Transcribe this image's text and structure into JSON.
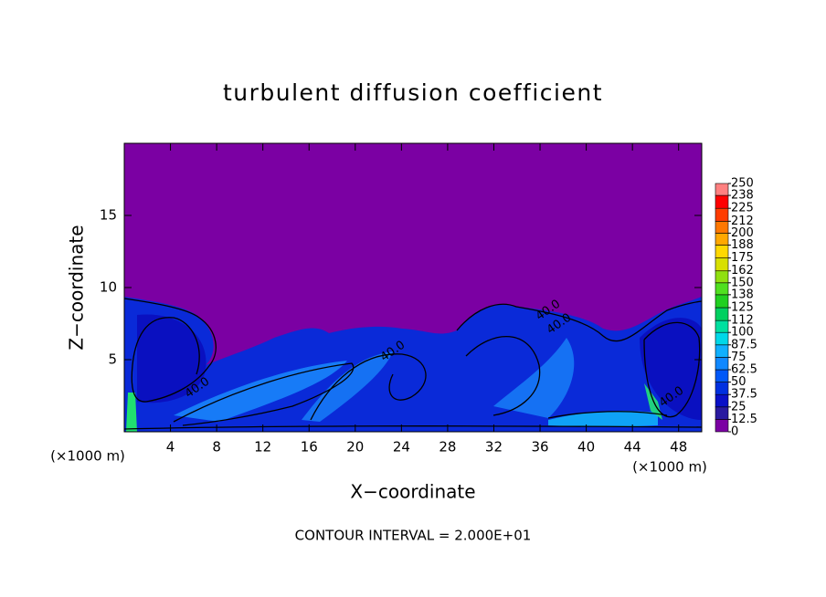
{
  "chart_data": {
    "type": "contour",
    "title": "turbulent diffusion coefficient",
    "x_label": "X−coordinate",
    "y_label": "Z−coordinate",
    "x_unit": "(×1000 m)",
    "footer": "CONTOUR INTERVAL = 2.000E+01",
    "xlim": [
      0,
      50
    ],
    "xticks": [
      4,
      8,
      12,
      16,
      20,
      24,
      28,
      32,
      36,
      40,
      44,
      48
    ],
    "ylim": [
      0,
      20
    ],
    "yticks": [
      5,
      10,
      15
    ],
    "contour_labels": [
      "40.0",
      "40.0",
      "40.0",
      "40.0",
      "40.0"
    ],
    "colorbar_ticks": [
      0,
      12.5,
      25,
      37.5,
      50,
      62.5,
      75,
      87.5,
      100,
      112,
      125,
      138,
      150,
      162,
      175,
      188,
      200,
      212,
      225,
      238,
      250
    ],
    "colors": [
      "#7b00a3",
      "#2a1aa0",
      "#0a10c8",
      "#0030e0",
      "#0058f8",
      "#1088ff",
      "#10b0ff",
      "#00d8e8",
      "#00e0a0",
      "#00d060",
      "#20d020",
      "#50e020",
      "#90e010",
      "#d8e000",
      "#ffd800",
      "#ffa800",
      "#ff7800",
      "#ff3c00",
      "#ff0000",
      "#ff8080"
    ]
  }
}
